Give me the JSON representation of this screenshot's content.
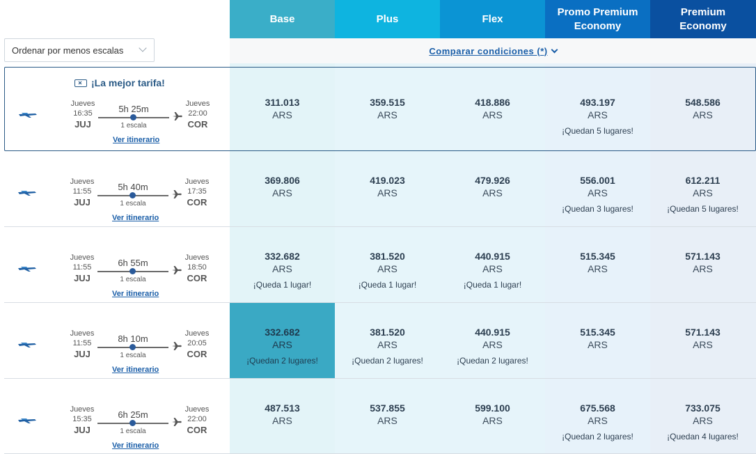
{
  "header": {
    "columns": [
      {
        "label": "Base",
        "color": "#3aaec8"
      },
      {
        "label": "Plus",
        "color": "#0eb4e0"
      },
      {
        "label": "Flex",
        "color": "#0b94d4"
      },
      {
        "label": "Promo Premium\nEconomy",
        "color": "#0a6fc2"
      },
      {
        "label": "Premium\nEconomy",
        "color": "#0a50a0"
      }
    ]
  },
  "sort": {
    "label": "Ordenar por menos escalas"
  },
  "compare": {
    "label": "Comparar condiciones (*)"
  },
  "best_label": "¡La mejor tarifa!",
  "itinerary_link": "Ver itinerario",
  "flights": [
    {
      "dep_day": "Jueves",
      "dep_time": "16:35",
      "dep_code": "JUJ",
      "arr_day": "Jueves",
      "arr_time": "22:00",
      "arr_code": "COR",
      "duration": "5h 25m",
      "stops": "1 escala",
      "fares": [
        {
          "price": "311.013",
          "currency": "ARS",
          "avail": ""
        },
        {
          "price": "359.515",
          "currency": "ARS",
          "avail": ""
        },
        {
          "price": "418.886",
          "currency": "ARS",
          "avail": ""
        },
        {
          "price": "493.197",
          "currency": "ARS",
          "avail": "¡Quedan 5 lugares!"
        },
        {
          "price": "548.586",
          "currency": "ARS",
          "avail": ""
        }
      ]
    },
    {
      "dep_day": "Jueves",
      "dep_time": "11:55",
      "dep_code": "JUJ",
      "arr_day": "Jueves",
      "arr_time": "17:35",
      "arr_code": "COR",
      "duration": "5h 40m",
      "stops": "1 escala",
      "fares": [
        {
          "price": "369.806",
          "currency": "ARS",
          "avail": ""
        },
        {
          "price": "419.023",
          "currency": "ARS",
          "avail": ""
        },
        {
          "price": "479.926",
          "currency": "ARS",
          "avail": ""
        },
        {
          "price": "556.001",
          "currency": "ARS",
          "avail": "¡Quedan 3 lugares!"
        },
        {
          "price": "612.211",
          "currency": "ARS",
          "avail": "¡Quedan 5 lugares!"
        }
      ]
    },
    {
      "dep_day": "Jueves",
      "dep_time": "11:55",
      "dep_code": "JUJ",
      "arr_day": "Jueves",
      "arr_time": "18:50",
      "arr_code": "COR",
      "duration": "6h 55m",
      "stops": "1 escala",
      "fares": [
        {
          "price": "332.682",
          "currency": "ARS",
          "avail": "¡Queda 1 lugar!"
        },
        {
          "price": "381.520",
          "currency": "ARS",
          "avail": "¡Queda 1 lugar!"
        },
        {
          "price": "440.915",
          "currency": "ARS",
          "avail": "¡Queda 1 lugar!"
        },
        {
          "price": "515.345",
          "currency": "ARS",
          "avail": ""
        },
        {
          "price": "571.143",
          "currency": "ARS",
          "avail": ""
        }
      ]
    },
    {
      "dep_day": "Jueves",
      "dep_time": "11:55",
      "dep_code": "JUJ",
      "arr_day": "Jueves",
      "arr_time": "20:05",
      "arr_code": "COR",
      "duration": "8h 10m",
      "stops": "1 escala",
      "fares": [
        {
          "price": "332.682",
          "currency": "ARS",
          "avail": "¡Quedan 2 lugares!"
        },
        {
          "price": "381.520",
          "currency": "ARS",
          "avail": "¡Quedan 2 lugares!"
        },
        {
          "price": "440.915",
          "currency": "ARS",
          "avail": "¡Quedan 2 lugares!"
        },
        {
          "price": "515.345",
          "currency": "ARS",
          "avail": ""
        },
        {
          "price": "571.143",
          "currency": "ARS",
          "avail": ""
        }
      ]
    },
    {
      "dep_day": "Jueves",
      "dep_time": "15:35",
      "dep_code": "JUJ",
      "arr_day": "Jueves",
      "arr_time": "22:00",
      "arr_code": "COR",
      "duration": "6h 25m",
      "stops": "1 escala",
      "fares": [
        {
          "price": "487.513",
          "currency": "ARS",
          "avail": ""
        },
        {
          "price": "537.855",
          "currency": "ARS",
          "avail": ""
        },
        {
          "price": "599.100",
          "currency": "ARS",
          "avail": ""
        },
        {
          "price": "675.568",
          "currency": "ARS",
          "avail": "¡Quedan 2 lugares!"
        },
        {
          "price": "733.075",
          "currency": "ARS",
          "avail": "¡Quedan 4 lugares!"
        }
      ]
    }
  ],
  "colors": {
    "column_bg": [
      "#e3f4f8",
      "#e6f5fa",
      "#e6f4fa",
      "#e7f2fa",
      "#e8eff7"
    ],
    "selected": "#3aa9c4",
    "link": "#1a5ea8"
  }
}
